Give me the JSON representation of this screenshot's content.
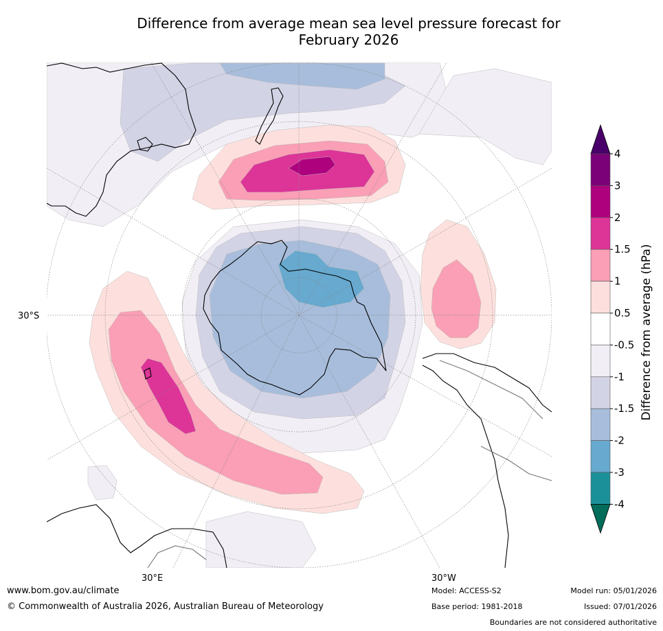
{
  "title_line1": "Difference from average mean sea level pressure forecast for",
  "title_line2": "February 2026",
  "map": {
    "lat_label": "30°S",
    "lon_labels": {
      "east": "30°E",
      "west": "30°W"
    },
    "anomaly_fills": {
      "neg_0_5_to_1": "#f2eef5",
      "neg_1_to_1_5": "#d3d3e6",
      "neg_1_5_to_2": "#a7bddb",
      "neg_2_to_3": "#67a9cf",
      "pos_0_5_to_1": "#fde0dd",
      "pos_1_to_1_5": "#fa9fb5",
      "pos_1_5_to_2": "#dd3497",
      "pos_2_to_3": "#ae017e"
    }
  },
  "colorbar": {
    "label": "Difference from average (hPa)",
    "ticks": [
      "4",
      "3",
      "2",
      "1.5",
      "1",
      "0.5",
      "-0.5",
      "-1",
      "-1.5",
      "-2",
      "-3",
      "-4"
    ],
    "colors": [
      "#7a0177",
      "#ae017e",
      "#dd3497",
      "#fa9fb5",
      "#fde0dd",
      "#ffffff",
      "#f2eef5",
      "#d3d3e6",
      "#a7bddb",
      "#67a9cf",
      "#1c9099"
    ],
    "top_arrow_color": "#49006a",
    "bottom_arrow_color": "#016c59"
  },
  "footer": {
    "url": "www.bom.gov.au/climate",
    "copyright": "© Commonwealth of Australia 2026, Australian Bureau of Meteorology",
    "model": "Model: ACCESS-S2",
    "base_period": "Base period: 1981-2018",
    "model_run": "Model run: 05/01/2026",
    "issued": "Issued: 07/01/2026",
    "disclaimer": "Boundaries are not considered authoritative"
  }
}
